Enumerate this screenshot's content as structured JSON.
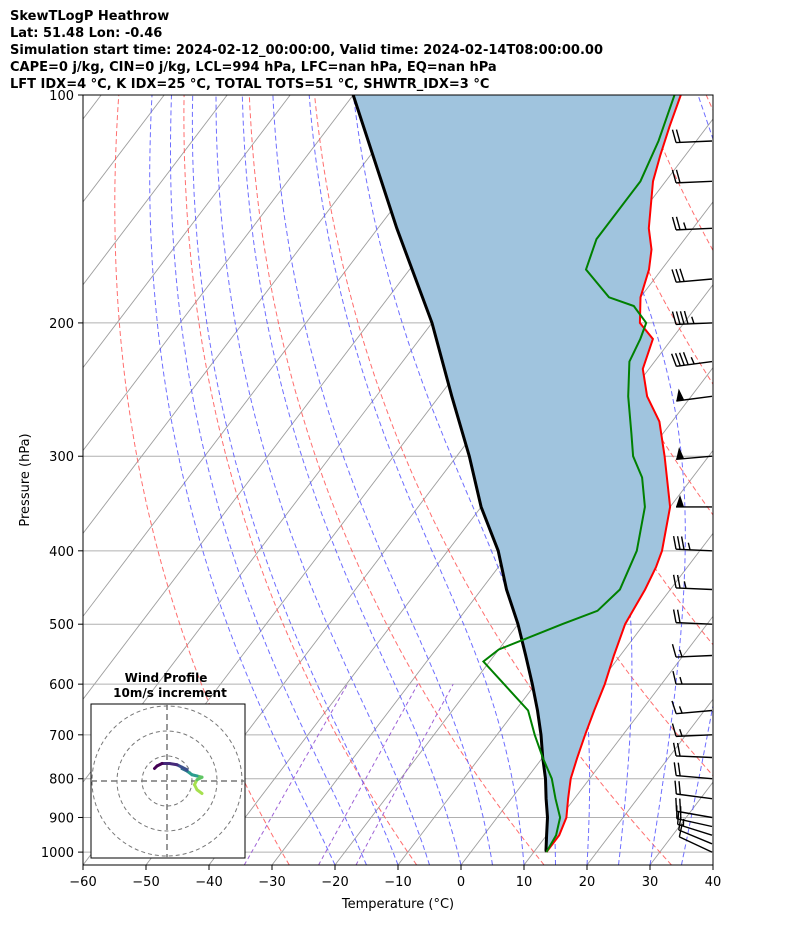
{
  "header": {
    "line1": "SkewTLogP Heathrow",
    "line2": "Lat: 51.48   Lon: -0.46",
    "line3": "Simulation start time: 2024-02-12_00:00:00, Valid time: 2024-02-14T08:00:00.00",
    "line4": "CAPE=0 j/kg, CIN=0 j/kg, LCL=994 hPa, LFC=nan hPa, EQ=nan hPa",
    "line5": "LFT IDX=4 °C, K IDX=25 °C, TOTAL TOTS=51 °C, SHWTR_IDX=3 °C"
  },
  "chart_data": {
    "type": "skewt-logp",
    "xlabel": "Temperature (°C)",
    "ylabel": "Pressure (hPa)",
    "xlim": [
      -60,
      40
    ],
    "ylim": [
      1040,
      100
    ],
    "xticks": [
      "−60",
      "−50",
      "−40",
      "−30",
      "−20",
      "−10",
      "0",
      "10",
      "20",
      "30",
      "40"
    ],
    "yticks": [
      100,
      200,
      300,
      400,
      500,
      600,
      700,
      800,
      900,
      1000
    ],
    "colors": {
      "temperature": "#ff0000",
      "dewpoint": "#008000",
      "parcel": "#000000",
      "shading": "#a0c4de",
      "dry_adiabats": "#ff5555",
      "moist_adiabats": "#5555ff",
      "mixing_ratio": "#9e62d6",
      "isotherms": "#9e9e9e"
    },
    "temperature": [
      [
        1000,
        12
      ],
      [
        950,
        12
      ],
      [
        900,
        11
      ],
      [
        850,
        9
      ],
      [
        800,
        7
      ],
      [
        750,
        5.5
      ],
      [
        700,
        4
      ],
      [
        650,
        2.5
      ],
      [
        600,
        1
      ],
      [
        550,
        -1
      ],
      [
        500,
        -3
      ],
      [
        450,
        -4
      ],
      [
        420,
        -5
      ],
      [
        400,
        -6
      ],
      [
        350,
        -10
      ],
      [
        300,
        -17
      ],
      [
        270,
        -22
      ],
      [
        250,
        -27
      ],
      [
        230,
        -31
      ],
      [
        210,
        -33
      ],
      [
        200,
        -37
      ],
      [
        185,
        -40
      ],
      [
        170,
        -42
      ],
      [
        160,
        -44
      ],
      [
        150,
        -47
      ],
      [
        130,
        -52
      ],
      [
        120,
        -54
      ],
      [
        110,
        -56
      ],
      [
        100,
        -58
      ]
    ],
    "dewpoint": [
      [
        1000,
        12
      ],
      [
        950,
        11.5
      ],
      [
        900,
        10
      ],
      [
        850,
        7
      ],
      [
        800,
        4
      ],
      [
        750,
        0
      ],
      [
        700,
        -4
      ],
      [
        650,
        -8
      ],
      [
        600,
        -15
      ],
      [
        560,
        -21
      ],
      [
        540,
        -20
      ],
      [
        500,
        -13
      ],
      [
        480,
        -9
      ],
      [
        450,
        -8
      ],
      [
        400,
        -10
      ],
      [
        350,
        -14
      ],
      [
        320,
        -18
      ],
      [
        300,
        -22
      ],
      [
        280,
        -25
      ],
      [
        250,
        -30
      ],
      [
        225,
        -34
      ],
      [
        210,
        -35
      ],
      [
        200,
        -36
      ],
      [
        190,
        -40
      ],
      [
        185,
        -45
      ],
      [
        170,
        -52
      ],
      [
        155,
        -54
      ],
      [
        130,
        -54
      ],
      [
        115,
        -56
      ],
      [
        100,
        -59
      ]
    ],
    "parcel": [
      [
        1000,
        12
      ],
      [
        994,
        11.7
      ],
      [
        950,
        10
      ],
      [
        900,
        8
      ],
      [
        850,
        5.5
      ],
      [
        800,
        3
      ],
      [
        750,
        0
      ],
      [
        700,
        -3
      ],
      [
        650,
        -6.5
      ],
      [
        600,
        -10.5
      ],
      [
        550,
        -15
      ],
      [
        500,
        -20
      ],
      [
        450,
        -26
      ],
      [
        400,
        -32
      ],
      [
        350,
        -40
      ],
      [
        300,
        -48
      ],
      [
        250,
        -58
      ],
      [
        200,
        -70
      ],
      [
        150,
        -87
      ],
      [
        100,
        -110
      ]
    ],
    "wind_barbs": [
      {
        "p": 1000,
        "speed_kt": 10,
        "dir": 220
      },
      {
        "p": 975,
        "speed_kt": 10,
        "dir": 225
      },
      {
        "p": 950,
        "speed_kt": 15,
        "dir": 235
      },
      {
        "p": 925,
        "speed_kt": 20,
        "dir": 245
      },
      {
        "p": 900,
        "speed_kt": 20,
        "dir": 250
      },
      {
        "p": 850,
        "speed_kt": 20,
        "dir": 255
      },
      {
        "p": 800,
        "speed_kt": 20,
        "dir": 260
      },
      {
        "p": 750,
        "speed_kt": 20,
        "dir": 265
      },
      {
        "p": 700,
        "speed_kt": 15,
        "dir": 275
      },
      {
        "p": 650,
        "speed_kt": 15,
        "dir": 280
      },
      {
        "p": 600,
        "speed_kt": 15,
        "dir": 270
      },
      {
        "p": 550,
        "speed_kt": 15,
        "dir": 275
      },
      {
        "p": 500,
        "speed_kt": 20,
        "dir": 265
      },
      {
        "p": 450,
        "speed_kt": 25,
        "dir": 265
      },
      {
        "p": 400,
        "speed_kt": 35,
        "dir": 265
      },
      {
        "p": 350,
        "speed_kt": 50,
        "dir": 270
      },
      {
        "p": 300,
        "speed_kt": 50,
        "dir": 280
      },
      {
        "p": 250,
        "speed_kt": 50,
        "dir": 285
      },
      {
        "p": 225,
        "speed_kt": 45,
        "dir": 285
      },
      {
        "p": 200,
        "speed_kt": 45,
        "dir": 275
      },
      {
        "p": 175,
        "speed_kt": 30,
        "dir": 280
      },
      {
        "p": 150,
        "speed_kt": 25,
        "dir": 275
      },
      {
        "p": 130,
        "speed_kt": 20,
        "dir": 275
      },
      {
        "p": 115,
        "speed_kt": 20,
        "dir": 275
      }
    ],
    "inset": {
      "title": "Wind Profile",
      "subtitle": "10m/s increment",
      "max_speed": 30,
      "hodograph": [
        [
          14,
          -5
        ],
        [
          12,
          -3.5
        ],
        [
          11,
          -1.5
        ],
        [
          12,
          0.5
        ],
        [
          14,
          1.5
        ],
        [
          12,
          2
        ],
        [
          10,
          2.5
        ],
        [
          8,
          4
        ],
        [
          6,
          5
        ],
        [
          8,
          4.5
        ],
        [
          6,
          5.5
        ],
        [
          4,
          6.5
        ],
        [
          1,
          7
        ],
        [
          -2,
          7
        ],
        [
          -4,
          6
        ],
        [
          -5,
          5
        ]
      ]
    }
  }
}
